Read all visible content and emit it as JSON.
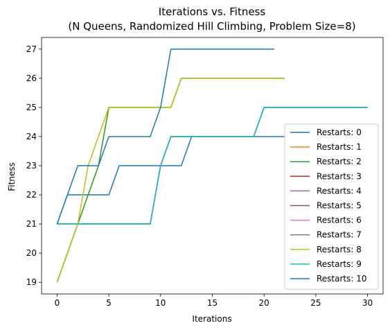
{
  "chart_data": {
    "type": "line",
    "title": "Iterations vs. Fitness",
    "subtitle": "(N Queens, Randomized Hill Climbing, Problem Size=8)",
    "xlabel": "Iterations",
    "ylabel": "Fitness",
    "xlim": [
      -1.5,
      31.5
    ],
    "ylim": [
      18.6,
      27.4
    ],
    "xticks": [
      0,
      5,
      10,
      15,
      20,
      25,
      30
    ],
    "yticks": [
      19,
      20,
      21,
      22,
      23,
      24,
      25,
      26,
      27
    ],
    "grid": false,
    "legend_position": "center-right",
    "series": [
      {
        "name": "Restarts: 0",
        "color": "#1f77b4",
        "x": [
          0,
          1,
          5,
          6,
          12,
          13,
          22
        ],
        "y": [
          21,
          22,
          22,
          23,
          23,
          24,
          24
        ]
      },
      {
        "name": "Restarts: 1",
        "color": "#ff7f0e",
        "x": [
          0,
          2,
          4,
          5,
          11,
          12,
          22
        ],
        "y": [
          19,
          21,
          23,
          25,
          25,
          26,
          26
        ]
      },
      {
        "name": "Restarts: 2",
        "color": "#2ca02c",
        "x": [
          0,
          2,
          4,
          5,
          11,
          12,
          22
        ],
        "y": [
          19,
          21,
          23,
          25,
          25,
          26,
          26
        ]
      },
      {
        "name": "Restarts: 3",
        "color": "#d62728",
        "x": [
          0,
          1,
          9,
          10,
          11,
          19,
          20,
          30
        ],
        "y": [
          21,
          21,
          21,
          23,
          24,
          24,
          25,
          25
        ]
      },
      {
        "name": "Restarts: 4",
        "color": "#9467bd",
        "x": [
          0,
          1,
          9,
          10,
          11,
          19,
          20,
          30
        ],
        "y": [
          21,
          21,
          21,
          23,
          24,
          24,
          25,
          25
        ]
      },
      {
        "name": "Restarts: 5",
        "color": "#8c564b",
        "x": [
          0,
          1,
          9,
          10,
          11,
          19,
          20,
          30
        ],
        "y": [
          21,
          21,
          21,
          23,
          24,
          24,
          25,
          25
        ]
      },
      {
        "name": "Restarts: 6",
        "color": "#e377c2",
        "x": [
          0,
          1,
          9,
          10,
          11,
          19,
          20,
          30
        ],
        "y": [
          21,
          21,
          21,
          23,
          24,
          24,
          25,
          25
        ]
      },
      {
        "name": "Restarts: 7",
        "color": "#7f7f7f",
        "x": [
          0,
          1,
          9,
          10,
          11,
          19,
          20,
          30
        ],
        "y": [
          21,
          21,
          21,
          23,
          24,
          24,
          25,
          25
        ]
      },
      {
        "name": "Restarts: 8",
        "color": "#bcbd22",
        "x": [
          0,
          2,
          3,
          5,
          11,
          12,
          22
        ],
        "y": [
          19,
          21,
          23,
          25,
          25,
          26,
          26
        ]
      },
      {
        "name": "Restarts: 9",
        "color": "#17becf",
        "x": [
          0,
          1,
          9,
          10,
          11,
          19,
          20,
          30
        ],
        "y": [
          21,
          21,
          21,
          23,
          24,
          24,
          25,
          25
        ]
      },
      {
        "name": "Restarts: 10",
        "color": "#1f77b4",
        "x": [
          0,
          2,
          4,
          5,
          9,
          10,
          11,
          21
        ],
        "y": [
          21,
          23,
          23,
          24,
          24,
          25,
          27,
          27
        ]
      }
    ]
  }
}
